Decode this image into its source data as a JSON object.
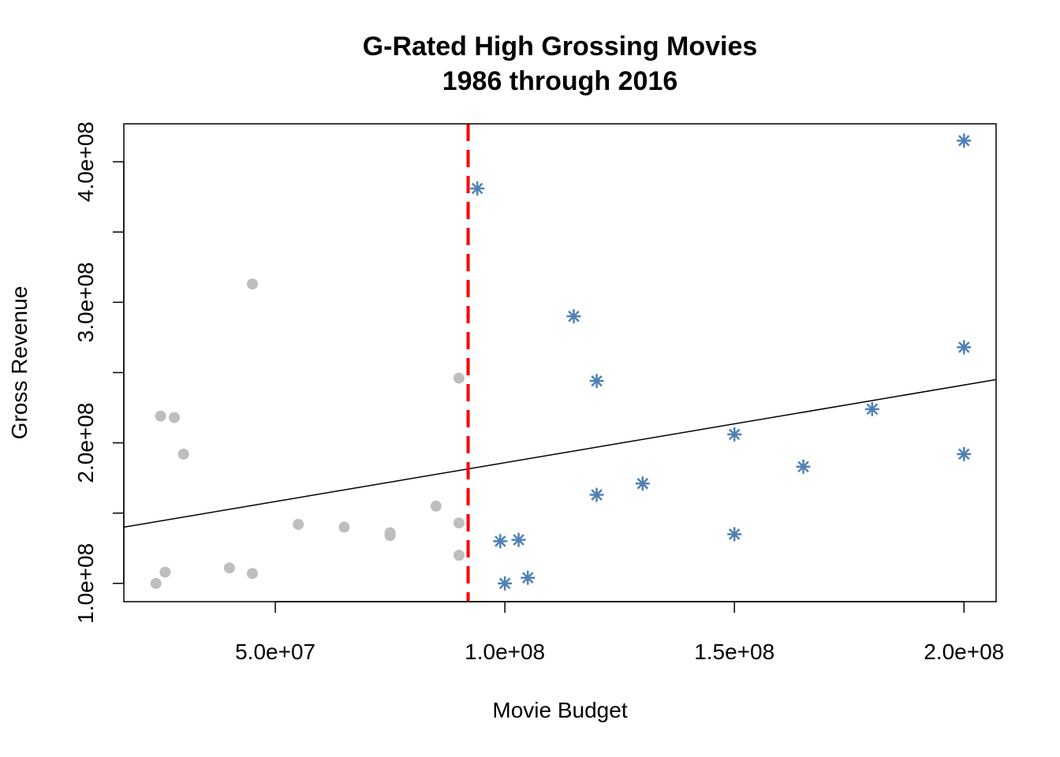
{
  "chart_data": {
    "type": "scatter",
    "title": "G-Rated High Grossing Movies",
    "subtitle": "1986 through 2016",
    "xlabel": "Movie Budget",
    "ylabel": "Gross Revenue",
    "xlim": [
      17000000,
      207000000
    ],
    "ylim": [
      87000000,
      427000000
    ],
    "x_ticks": [
      {
        "value": 50000000,
        "label": "5.0e+07"
      },
      {
        "value": 100000000,
        "label": "1.0e+08"
      },
      {
        "value": 150000000,
        "label": "1.5e+08"
      },
      {
        "value": 200000000,
        "label": "2.0e+08"
      }
    ],
    "y_ticks": [
      {
        "value": 100000000,
        "label": "1.0e+08"
      },
      {
        "value": 150000000,
        "label": ""
      },
      {
        "value": 200000000,
        "label": "2.0e+08"
      },
      {
        "value": 250000000,
        "label": ""
      },
      {
        "value": 300000000,
        "label": "3.0e+08"
      },
      {
        "value": 350000000,
        "label": ""
      },
      {
        "value": 400000000,
        "label": "4.0e+08"
      }
    ],
    "grid": false,
    "series": [
      {
        "marker": "filled-circle",
        "color": "#bebebe",
        "points": [
          {
            "x": 24000000,
            "y": 100000000
          },
          {
            "x": 26000000,
            "y": 108000000
          },
          {
            "x": 25000000,
            "y": 219000000
          },
          {
            "x": 28000000,
            "y": 218000000
          },
          {
            "x": 30000000,
            "y": 192000000
          },
          {
            "x": 40000000,
            "y": 111000000
          },
          {
            "x": 45000000,
            "y": 107000000
          },
          {
            "x": 45000000,
            "y": 313000000
          },
          {
            "x": 55000000,
            "y": 142000000
          },
          {
            "x": 65000000,
            "y": 140000000
          },
          {
            "x": 75000000,
            "y": 136000000
          },
          {
            "x": 75000000,
            "y": 134000000
          },
          {
            "x": 85000000,
            "y": 155000000
          },
          {
            "x": 90000000,
            "y": 246000000
          },
          {
            "x": 90000000,
            "y": 143000000
          },
          {
            "x": 90000000,
            "y": 120000000
          }
        ]
      },
      {
        "marker": "asterisk",
        "color": "#4f81b3",
        "points": [
          {
            "x": 94000000,
            "y": 381000000
          },
          {
            "x": 99000000,
            "y": 130000000
          },
          {
            "x": 100000000,
            "y": 100000000
          },
          {
            "x": 103000000,
            "y": 131000000
          },
          {
            "x": 105000000,
            "y": 104000000
          },
          {
            "x": 115000000,
            "y": 290000000
          },
          {
            "x": 120000000,
            "y": 244000000
          },
          {
            "x": 120000000,
            "y": 163000000
          },
          {
            "x": 130000000,
            "y": 171000000
          },
          {
            "x": 150000000,
            "y": 206000000
          },
          {
            "x": 150000000,
            "y": 135000000
          },
          {
            "x": 165000000,
            "y": 183000000
          },
          {
            "x": 180000000,
            "y": 224000000
          },
          {
            "x": 200000000,
            "y": 415000000
          },
          {
            "x": 200000000,
            "y": 268000000
          },
          {
            "x": 200000000,
            "y": 192000000
          }
        ]
      }
    ],
    "vertical_line": {
      "x": 92000000,
      "color": "#ff0000",
      "style": "dashed"
    },
    "regression_line": {
      "x": [
        17000000,
        207000000
      ],
      "y": [
        140000000,
        245000000
      ],
      "color": "#000000"
    }
  }
}
